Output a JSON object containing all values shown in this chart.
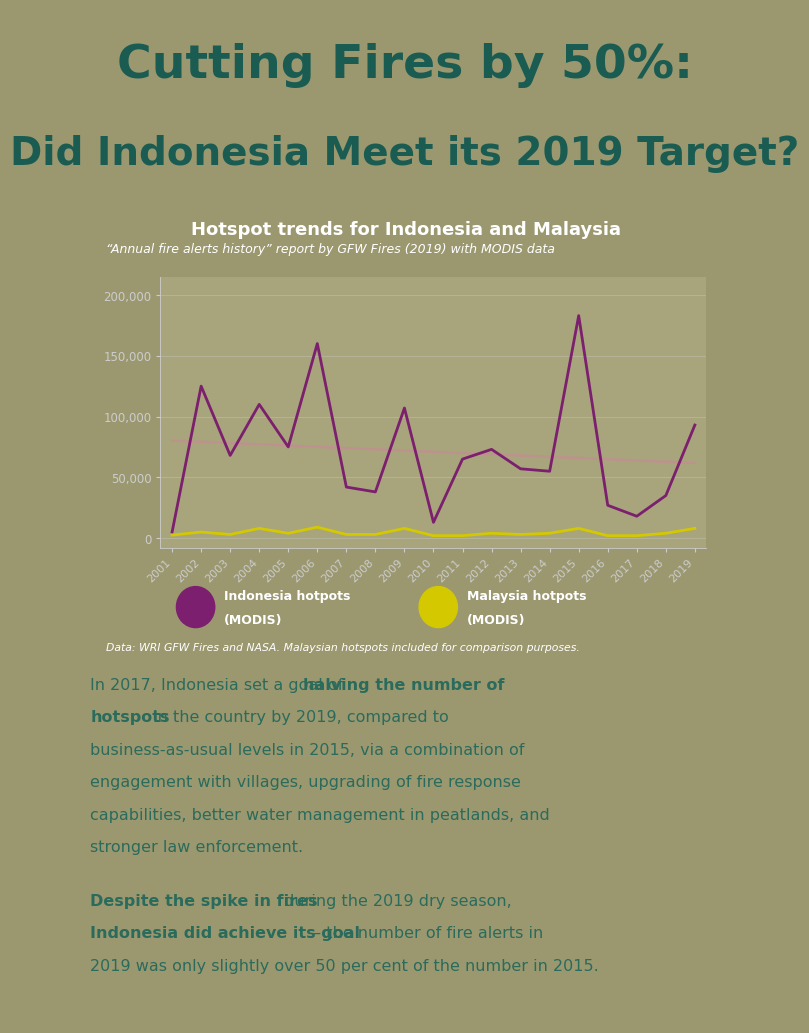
{
  "title_line1": "Cutting Fires by 50%:",
  "title_line2": "Did Indonesia Meet its 2019 Target?",
  "bg_color": "#9b9870",
  "chart_box_color": "#a8a57c",
  "chart_title": "Hotspot trends for Indonesia and Malaysia",
  "chart_subtitle": "“Annual fire alerts history” report by GFW Fires (2019) with MODIS data",
  "data_source": "Data: WRI GFW Fires and NASA. Malaysian hotspots included for comparison purposes.",
  "years": [
    2001,
    2002,
    2003,
    2004,
    2005,
    2006,
    2007,
    2008,
    2009,
    2010,
    2011,
    2012,
    2013,
    2014,
    2015,
    2016,
    2017,
    2018,
    2019
  ],
  "indonesia": [
    5000,
    125000,
    68000,
    110000,
    75000,
    160000,
    42000,
    38000,
    107000,
    13000,
    65000,
    73000,
    57000,
    55000,
    183000,
    27000,
    18000,
    35000,
    93000
  ],
  "malaysia": [
    2500,
    5000,
    3000,
    8000,
    4000,
    9000,
    3000,
    3000,
    8000,
    2000,
    2000,
    4000,
    3000,
    4000,
    8000,
    2000,
    2000,
    4000,
    8000
  ],
  "indonesia_color": "#7b1f6e",
  "malaysia_color": "#d4c800",
  "trend_color": "#c09090",
  "title_color": "#1a5c52",
  "text_color": "#2a6b5c",
  "chart_title_color": "white",
  "chart_text_color": "white",
  "tick_color": "#cccccc",
  "grid_color": "#cccccc",
  "yticks": [
    0,
    50000,
    100000,
    150000,
    200000
  ],
  "ytick_labels": [
    "0",
    "50,000",
    "100,000",
    "150,000",
    "200,000"
  ]
}
